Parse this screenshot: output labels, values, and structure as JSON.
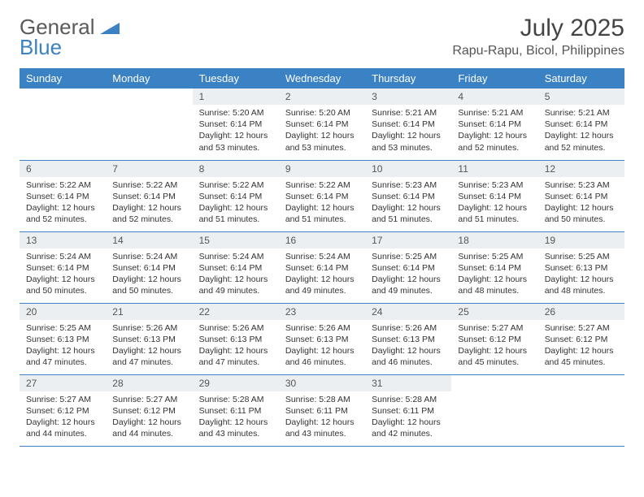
{
  "brand": {
    "part1": "General",
    "part2": "Blue"
  },
  "title": "July 2025",
  "location": "Rapu-Rapu, Bicol, Philippines",
  "colors": {
    "header_bg": "#3b82c4",
    "header_fg": "#ffffff",
    "daynum_bg": "#eceff1",
    "border": "#3b82c4",
    "text": "#333333"
  },
  "day_headers": [
    "Sunday",
    "Monday",
    "Tuesday",
    "Wednesday",
    "Thursday",
    "Friday",
    "Saturday"
  ],
  "weeks": [
    [
      null,
      null,
      {
        "n": "1",
        "sr": "5:20 AM",
        "ss": "6:14 PM",
        "dl": "12 hours and 53 minutes."
      },
      {
        "n": "2",
        "sr": "5:20 AM",
        "ss": "6:14 PM",
        "dl": "12 hours and 53 minutes."
      },
      {
        "n": "3",
        "sr": "5:21 AM",
        "ss": "6:14 PM",
        "dl": "12 hours and 53 minutes."
      },
      {
        "n": "4",
        "sr": "5:21 AM",
        "ss": "6:14 PM",
        "dl": "12 hours and 52 minutes."
      },
      {
        "n": "5",
        "sr": "5:21 AM",
        "ss": "6:14 PM",
        "dl": "12 hours and 52 minutes."
      }
    ],
    [
      {
        "n": "6",
        "sr": "5:22 AM",
        "ss": "6:14 PM",
        "dl": "12 hours and 52 minutes."
      },
      {
        "n": "7",
        "sr": "5:22 AM",
        "ss": "6:14 PM",
        "dl": "12 hours and 52 minutes."
      },
      {
        "n": "8",
        "sr": "5:22 AM",
        "ss": "6:14 PM",
        "dl": "12 hours and 51 minutes."
      },
      {
        "n": "9",
        "sr": "5:22 AM",
        "ss": "6:14 PM",
        "dl": "12 hours and 51 minutes."
      },
      {
        "n": "10",
        "sr": "5:23 AM",
        "ss": "6:14 PM",
        "dl": "12 hours and 51 minutes."
      },
      {
        "n": "11",
        "sr": "5:23 AM",
        "ss": "6:14 PM",
        "dl": "12 hours and 51 minutes."
      },
      {
        "n": "12",
        "sr": "5:23 AM",
        "ss": "6:14 PM",
        "dl": "12 hours and 50 minutes."
      }
    ],
    [
      {
        "n": "13",
        "sr": "5:24 AM",
        "ss": "6:14 PM",
        "dl": "12 hours and 50 minutes."
      },
      {
        "n": "14",
        "sr": "5:24 AM",
        "ss": "6:14 PM",
        "dl": "12 hours and 50 minutes."
      },
      {
        "n": "15",
        "sr": "5:24 AM",
        "ss": "6:14 PM",
        "dl": "12 hours and 49 minutes."
      },
      {
        "n": "16",
        "sr": "5:24 AM",
        "ss": "6:14 PM",
        "dl": "12 hours and 49 minutes."
      },
      {
        "n": "17",
        "sr": "5:25 AM",
        "ss": "6:14 PM",
        "dl": "12 hours and 49 minutes."
      },
      {
        "n": "18",
        "sr": "5:25 AM",
        "ss": "6:14 PM",
        "dl": "12 hours and 48 minutes."
      },
      {
        "n": "19",
        "sr": "5:25 AM",
        "ss": "6:13 PM",
        "dl": "12 hours and 48 minutes."
      }
    ],
    [
      {
        "n": "20",
        "sr": "5:25 AM",
        "ss": "6:13 PM",
        "dl": "12 hours and 47 minutes."
      },
      {
        "n": "21",
        "sr": "5:26 AM",
        "ss": "6:13 PM",
        "dl": "12 hours and 47 minutes."
      },
      {
        "n": "22",
        "sr": "5:26 AM",
        "ss": "6:13 PM",
        "dl": "12 hours and 47 minutes."
      },
      {
        "n": "23",
        "sr": "5:26 AM",
        "ss": "6:13 PM",
        "dl": "12 hours and 46 minutes."
      },
      {
        "n": "24",
        "sr": "5:26 AM",
        "ss": "6:13 PM",
        "dl": "12 hours and 46 minutes."
      },
      {
        "n": "25",
        "sr": "5:27 AM",
        "ss": "6:12 PM",
        "dl": "12 hours and 45 minutes."
      },
      {
        "n": "26",
        "sr": "5:27 AM",
        "ss": "6:12 PM",
        "dl": "12 hours and 45 minutes."
      }
    ],
    [
      {
        "n": "27",
        "sr": "5:27 AM",
        "ss": "6:12 PM",
        "dl": "12 hours and 44 minutes."
      },
      {
        "n": "28",
        "sr": "5:27 AM",
        "ss": "6:12 PM",
        "dl": "12 hours and 44 minutes."
      },
      {
        "n": "29",
        "sr": "5:28 AM",
        "ss": "6:11 PM",
        "dl": "12 hours and 43 minutes."
      },
      {
        "n": "30",
        "sr": "5:28 AM",
        "ss": "6:11 PM",
        "dl": "12 hours and 43 minutes."
      },
      {
        "n": "31",
        "sr": "5:28 AM",
        "ss": "6:11 PM",
        "dl": "12 hours and 42 minutes."
      },
      null,
      null
    ]
  ],
  "labels": {
    "sunrise": "Sunrise:",
    "sunset": "Sunset:",
    "daylight": "Daylight:"
  }
}
